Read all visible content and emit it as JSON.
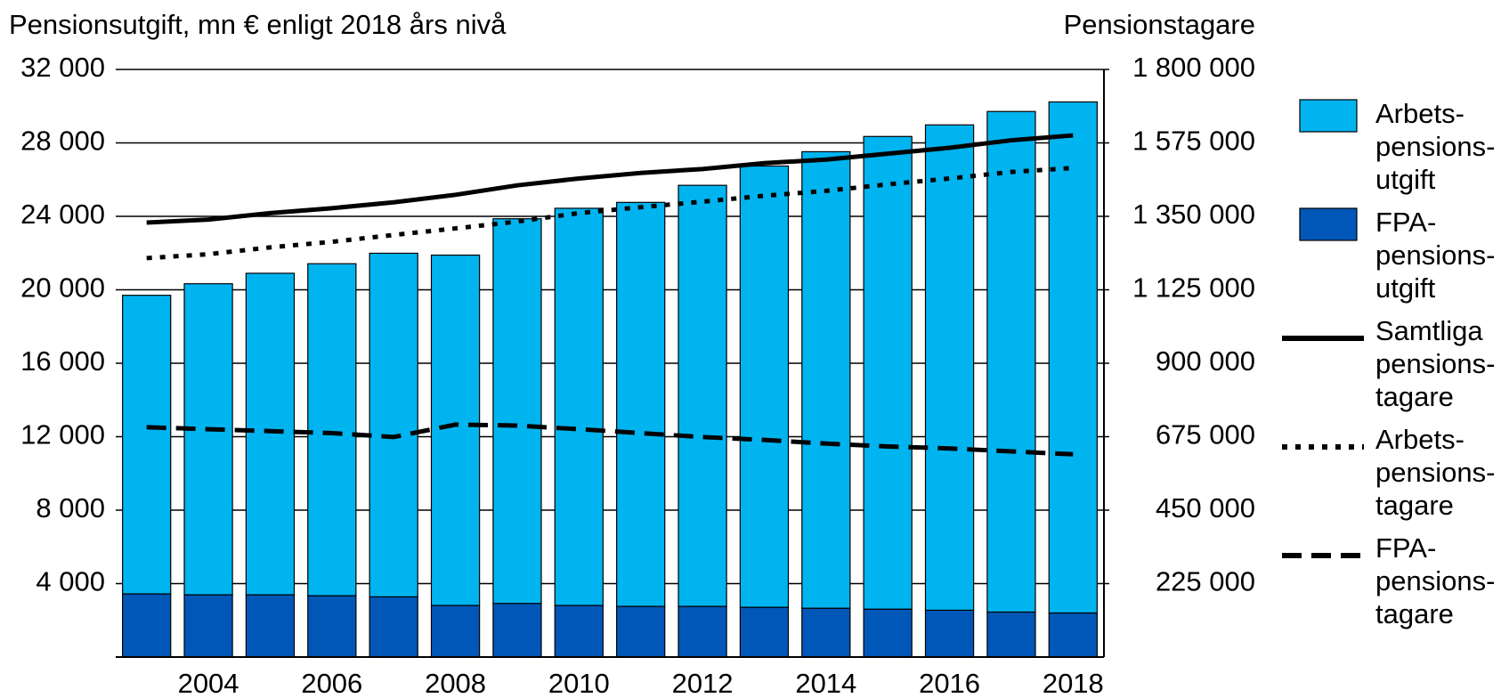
{
  "chart_data": {
    "type": "bar",
    "y_label": "Pensionsutgift, mn € enligt 2018 års nivå",
    "y2_label": "Pensionstagare",
    "categories": [
      null,
      "2004",
      null,
      "2006",
      null,
      "2008",
      null,
      "2010",
      null,
      "2012",
      null,
      "2014",
      null,
      "2016",
      null,
      "2018"
    ],
    "series": [
      {
        "name": "FPA-\npensions-\nutgift",
        "type": "bar",
        "color": "#0057b8",
        "values": [
          3440,
          3390,
          3390,
          3340,
          3280,
          2810,
          2920,
          2810,
          2760,
          2760,
          2710,
          2660,
          2610,
          2550,
          2450,
          2400
        ]
      },
      {
        "name": "Arbets-\npensions-\nutgift",
        "type": "bar",
        "color": "#00b4f0",
        "values": [
          16260,
          16940,
          17510,
          18080,
          18710,
          19080,
          20950,
          21630,
          22000,
          22930,
          24030,
          24860,
          25740,
          26430,
          27260,
          27830
        ]
      },
      {
        "name": "Samtliga\npensions-\ntagare",
        "type": "line",
        "axis": "y2",
        "color": "#000000",
        "dash": "solid",
        "values": [
          1331000,
          1340000,
          1360000,
          1375000,
          1393000,
          1416000,
          1445000,
          1466000,
          1483000,
          1495000,
          1513000,
          1524000,
          1542000,
          1560000,
          1583000,
          1598000
        ]
      },
      {
        "name": "Arbets-\npensions-\ntagare",
        "type": "line",
        "axis": "y2",
        "color": "#000000",
        "dash": "dotted",
        "values": [
          1222000,
          1234000,
          1255000,
          1272000,
          1293000,
          1313000,
          1334000,
          1360000,
          1378000,
          1395000,
          1413000,
          1428000,
          1448000,
          1466000,
          1486000,
          1498000
        ]
      },
      {
        "name": "FPA-\npensions-\ntagare",
        "type": "line",
        "axis": "y2",
        "color": "#000000",
        "dash": "dashed",
        "values": [
          704000,
          698000,
          692000,
          686000,
          674000,
          712000,
          709000,
          698000,
          686000,
          674000,
          665000,
          654000,
          645000,
          639000,
          630000,
          621000
        ]
      }
    ],
    "ylim": [
      0,
      32000
    ],
    "yticks": [
      {
        "value": 4000,
        "label": "4 000"
      },
      {
        "value": 8000,
        "label": "8 000"
      },
      {
        "value": 12000,
        "label": "12 000"
      },
      {
        "value": 16000,
        "label": "16 000"
      },
      {
        "value": 20000,
        "label": "20 000"
      },
      {
        "value": 24000,
        "label": "24 000"
      },
      {
        "value": 28000,
        "label": "28 000"
      },
      {
        "value": 32000,
        "label": "32 000"
      }
    ],
    "y2lim": [
      0,
      1800000
    ],
    "y2ticks": [
      {
        "value": 225000,
        "label": "225 000"
      },
      {
        "value": 450000,
        "label": "450 000"
      },
      {
        "value": 675000,
        "label": "675 000"
      },
      {
        "value": 900000,
        "label": "900 000"
      },
      {
        "value": 1125000,
        "label": "1 125 000"
      },
      {
        "value": 1350000,
        "label": "1 350 000"
      },
      {
        "value": 1575000,
        "label": "1 575 000"
      },
      {
        "value": 1800000,
        "label": "1 800 000"
      }
    ],
    "grid": true,
    "legend": "right"
  }
}
